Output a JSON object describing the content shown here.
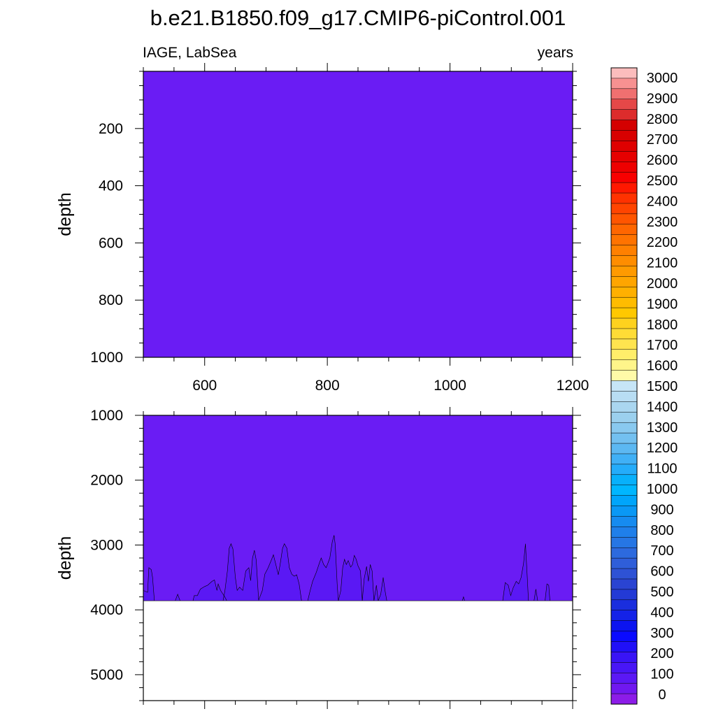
{
  "page": {
    "background": "#ffffff"
  },
  "chart_data": {
    "type": "heatmap",
    "title": "b.e21.B1850.f09_g17.CMIP6-piControl.001",
    "left_string": "IAGE, LabSea",
    "right_string": "years",
    "x": {
      "range": [
        500,
        1200
      ],
      "major_ticks": [
        600,
        800,
        1000,
        1200
      ],
      "tick_labels": [
        "600",
        "800",
        "1000",
        "1200"
      ]
    },
    "panels": [
      {
        "name": "upper",
        "ylabel": "depth",
        "ylim": [
          0,
          1000
        ],
        "y_reversed": true,
        "y_ticks": [
          200,
          400,
          600,
          800,
          1000
        ],
        "fill_level": "0-50",
        "fill_color": "#6a1cf4"
      },
      {
        "name": "lower",
        "ylabel": "depth",
        "ylim": [
          1000,
          5400
        ],
        "y_reversed": true,
        "y_ticks": [
          1000,
          2000,
          3000,
          4000,
          5000
        ],
        "fill_color": "#6a1cf4",
        "deep_fill_color": "#5a18f4",
        "bottom_of_data": 3860,
        "no_data_color": "#ffffff",
        "contour_100yr_depth": [
          [
            500,
            3700
          ],
          [
            507,
            3730
          ],
          [
            509,
            3350
          ],
          [
            513,
            3380
          ],
          [
            515,
            3500
          ],
          [
            518,
            3860
          ],
          [
            552,
            3860
          ],
          [
            556,
            3760
          ],
          [
            560,
            3860
          ],
          [
            581,
            3860
          ],
          [
            583,
            3780
          ],
          [
            588,
            3780
          ],
          [
            593,
            3680
          ],
          [
            600,
            3640
          ],
          [
            605,
            3620
          ],
          [
            612,
            3560
          ],
          [
            616,
            3540
          ],
          [
            620,
            3700
          ],
          [
            622,
            3600
          ],
          [
            626,
            3700
          ],
          [
            630,
            3760
          ],
          [
            634,
            3820
          ],
          [
            636,
            3860
          ],
          [
            630,
            3860
          ],
          [
            633,
            3700
          ],
          [
            637,
            3400
          ],
          [
            640,
            3050
          ],
          [
            643,
            2980
          ],
          [
            646,
            3060
          ],
          [
            650,
            3500
          ],
          [
            653,
            3700
          ],
          [
            657,
            3650
          ],
          [
            662,
            3700
          ],
          [
            667,
            3400
          ],
          [
            672,
            3350
          ],
          [
            675,
            3550
          ],
          [
            678,
            3200
          ],
          [
            681,
            3080
          ],
          [
            684,
            3230
          ],
          [
            688,
            3850
          ],
          [
            694,
            3700
          ],
          [
            698,
            3450
          ],
          [
            703,
            3360
          ],
          [
            708,
            3250
          ],
          [
            712,
            3150
          ],
          [
            716,
            3300
          ],
          [
            720,
            3460
          ],
          [
            723,
            3300
          ],
          [
            727,
            3050
          ],
          [
            730,
            2980
          ],
          [
            734,
            3050
          ],
          [
            738,
            3350
          ],
          [
            742,
            3450
          ],
          [
            746,
            3480
          ],
          [
            750,
            3460
          ],
          [
            754,
            3600
          ],
          [
            758,
            3860
          ],
          [
            768,
            3860
          ],
          [
            772,
            3700
          ],
          [
            776,
            3560
          ],
          [
            782,
            3420
          ],
          [
            787,
            3280
          ],
          [
            790,
            3200
          ],
          [
            794,
            3300
          ],
          [
            798,
            3350
          ],
          [
            801,
            3280
          ],
          [
            804,
            3200
          ],
          [
            808,
            2950
          ],
          [
            811,
            2850
          ],
          [
            813,
            3000
          ],
          [
            816,
            3600
          ],
          [
            818,
            3860
          ],
          [
            822,
            3700
          ],
          [
            825,
            3350
          ],
          [
            828,
            3220
          ],
          [
            831,
            3300
          ],
          [
            834,
            3240
          ],
          [
            838,
            3340
          ],
          [
            841,
            3300
          ],
          [
            844,
            3160
          ],
          [
            847,
            3220
          ],
          [
            850,
            3320
          ],
          [
            854,
            3400
          ],
          [
            857,
            3860
          ],
          [
            860,
            3520
          ],
          [
            864,
            3330
          ],
          [
            867,
            3560
          ],
          [
            870,
            3300
          ],
          [
            873,
            3400
          ],
          [
            876,
            3860
          ],
          [
            880,
            3620
          ],
          [
            883,
            3860
          ],
          [
            887,
            3760
          ],
          [
            891,
            3500
          ],
          [
            894,
            3700
          ],
          [
            897,
            3860
          ],
          [
            1020,
            3860
          ],
          [
            1022,
            3800
          ],
          [
            1024,
            3860
          ],
          [
            1086,
            3860
          ],
          [
            1090,
            3580
          ],
          [
            1095,
            3620
          ],
          [
            1099,
            3780
          ],
          [
            1103,
            3660
          ],
          [
            1108,
            3560
          ],
          [
            1112,
            3600
          ],
          [
            1116,
            3500
          ],
          [
            1120,
            3280
          ],
          [
            1123,
            2980
          ],
          [
            1126,
            3500
          ],
          [
            1128,
            3860
          ],
          [
            1137,
            3860
          ],
          [
            1140,
            3680
          ],
          [
            1143,
            3860
          ],
          [
            1155,
            3860
          ],
          [
            1158,
            3600
          ],
          [
            1161,
            3620
          ],
          [
            1163,
            3860
          ],
          [
            1200,
            3860
          ]
        ]
      }
    ],
    "colorbar": {
      "labels": [
        "3000",
        "2900",
        "2800",
        "2700",
        "2600",
        "2500",
        "2400",
        "2300",
        "2200",
        "2100",
        "2000",
        "1900",
        "1800",
        "1700",
        "1600",
        "1500",
        "1400",
        "1300",
        "1200",
        "1100",
        "1000",
        "900",
        "800",
        "700",
        "600",
        "500",
        "400",
        "300",
        "200",
        "100",
        "0"
      ],
      "colors_top_to_bottom": [
        "#fcbdbd",
        "#f79191",
        "#f07070",
        "#e54848",
        "#dd2c2c",
        "#d40000",
        "#d80000",
        "#df0000",
        "#e60000",
        "#ee0000",
        "#f80000",
        "#ff1800",
        "#ff3200",
        "#ff4400",
        "#ff5500",
        "#ff6600",
        "#ff7300",
        "#ff8000",
        "#ff8d00",
        "#ff9a00",
        "#ffa500",
        "#ffb000",
        "#ffbc00",
        "#ffc800",
        "#ffd21e",
        "#ffdc36",
        "#ffe44f",
        "#ffee6a",
        "#fff58a",
        "#fffaa8",
        "#c6e5f7",
        "#b8ddf3",
        "#aad6f0",
        "#9bd0ee",
        "#89c9ef",
        "#73c0f0",
        "#5cb8f2",
        "#40b0f6",
        "#24acfa",
        "#08b0fb",
        "#00b6ff",
        "#00a5fb",
        "#0a98f5",
        "#168bf0",
        "#1f7fea",
        "#2676e4",
        "#2d6ade",
        "#2f5ed9",
        "#2e52d5",
        "#2a44d2",
        "#233ad5",
        "#1a2ede",
        "#1422e8",
        "#0c14f0",
        "#0a0aff",
        "#2010f8",
        "#3914f6",
        "#4816f6",
        "#5b18f5",
        "#7018f0",
        "#8c1ce8"
      ]
    }
  }
}
